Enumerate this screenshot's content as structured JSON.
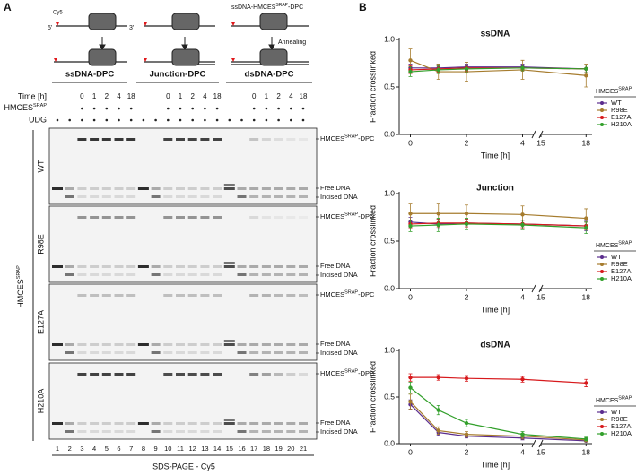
{
  "panel_a": {
    "label": "A",
    "schematic": {
      "cy5": "Cy5",
      "five_prime": "5'",
      "three_prime": "3'",
      "probe": {
        "main": "ssDNA-HMCES",
        "sup": "SRAP",
        "tail": "-DPC"
      },
      "annealing": "Annealing"
    },
    "groups": [
      "ssDNA-DPC",
      "Junction-DPC",
      "dsDNA-DPC"
    ],
    "row_labels": {
      "time": "Time [h]",
      "hmces": {
        "main": "HMCES",
        "sup": "SRAP"
      },
      "udg": "UDG"
    },
    "times": [
      0,
      1,
      2,
      4,
      18
    ],
    "gels": [
      "WT",
      "R98E",
      "E127A",
      "H210A"
    ],
    "band_labels": {
      "dpc": {
        "main": "HMCES",
        "sup": "SRAP",
        "tail": "-DPC"
      },
      "free": "Free DNA",
      "incised": "Incised DNA"
    },
    "protein_label": {
      "main": "HMCES",
      "sup": "SRAP"
    },
    "lanes": [
      1,
      2,
      3,
      4,
      5,
      6,
      7,
      8,
      9,
      10,
      11,
      12,
      13,
      14,
      15,
      16,
      17,
      18,
      19,
      20,
      21
    ],
    "footer": "SDS-PAGE - Cy5"
  },
  "panel_b": {
    "label": "B"
  },
  "chart_data": [
    {
      "type": "line",
      "title": "ssDNA",
      "xlabel": "Time [h]",
      "ylabel": "Fraction crosslinked",
      "x": [
        0,
        1,
        2,
        4,
        18
      ],
      "xlim": [
        -0.4,
        18.4
      ],
      "x_break": [
        4.4,
        15
      ],
      "xticks": [
        0,
        2,
        4,
        15,
        18
      ],
      "ylim": [
        0,
        1
      ],
      "yticks": [
        {
          "value": 0,
          "label": "0.0"
        },
        {
          "value": 0.5,
          "label": "0.5"
        },
        {
          "value": 1,
          "label": "1.0"
        }
      ],
      "legend": "lower right",
      "legend_title": {
        "main": "HMCES",
        "sup": "SRAP"
      },
      "series": [
        {
          "name": "WT",
          "color": "#5b2d8e",
          "values": [
            0.7,
            0.7,
            0.71,
            0.71,
            0.69
          ],
          "errors": [
            0.04,
            0.04,
            0.03,
            0.03,
            0.04
          ]
        },
        {
          "name": "R98E",
          "color": "#a67c2e",
          "values": [
            0.78,
            0.66,
            0.66,
            0.68,
            0.62
          ],
          "errors": [
            0.12,
            0.08,
            0.1,
            0.1,
            0.12
          ]
        },
        {
          "name": "E127A",
          "color": "#d7191c",
          "values": [
            0.68,
            0.69,
            0.7,
            0.7,
            0.69
          ],
          "errors": [
            0.04,
            0.03,
            0.03,
            0.03,
            0.04
          ]
        },
        {
          "name": "H210A",
          "color": "#33a02c",
          "values": [
            0.66,
            0.68,
            0.69,
            0.7,
            0.69
          ],
          "errors": [
            0.05,
            0.04,
            0.04,
            0.03,
            0.04
          ]
        }
      ]
    },
    {
      "type": "line",
      "title": "Junction",
      "xlabel": "Time [h]",
      "ylabel": "Fraction crosslinked",
      "x": [
        0,
        1,
        2,
        4,
        18
      ],
      "xlim": [
        -0.4,
        18.4
      ],
      "x_break": [
        4.4,
        15
      ],
      "xticks": [
        0,
        2,
        4,
        15,
        18
      ],
      "ylim": [
        0,
        1
      ],
      "yticks": [
        {
          "value": 0,
          "label": "0.0"
        },
        {
          "value": 0.5,
          "label": "0.5"
        },
        {
          "value": 1,
          "label": "1.0"
        }
      ],
      "legend": "lower right",
      "legend_title": {
        "main": "HMCES",
        "sup": "SRAP"
      },
      "series": [
        {
          "name": "WT",
          "color": "#5b2d8e",
          "values": [
            0.7,
            0.68,
            0.69,
            0.68,
            0.66
          ],
          "errors": [
            0.05,
            0.05,
            0.04,
            0.04,
            0.05
          ]
        },
        {
          "name": "R98E",
          "color": "#a67c2e",
          "values": [
            0.79,
            0.79,
            0.79,
            0.78,
            0.74
          ],
          "errors": [
            0.1,
            0.1,
            0.09,
            0.09,
            0.1
          ]
        },
        {
          "name": "E127A",
          "color": "#d7191c",
          "values": [
            0.68,
            0.69,
            0.69,
            0.68,
            0.66
          ],
          "errors": [
            0.04,
            0.04,
            0.04,
            0.04,
            0.04
          ]
        },
        {
          "name": "H210A",
          "color": "#33a02c",
          "values": [
            0.66,
            0.67,
            0.68,
            0.67,
            0.64
          ],
          "errors": [
            0.06,
            0.07,
            0.06,
            0.05,
            0.06
          ]
        }
      ]
    },
    {
      "type": "line",
      "title": "dsDNA",
      "xlabel": "Time [h]",
      "ylabel": "Fraction crosslinked",
      "x": [
        0,
        1,
        2,
        4,
        18
      ],
      "xlim": [
        -0.4,
        18.4
      ],
      "x_break": [
        4.4,
        15
      ],
      "xticks": [
        0,
        2,
        4,
        15,
        18
      ],
      "ylim": [
        0,
        1
      ],
      "yticks": [
        {
          "value": 0,
          "label": "0.0"
        },
        {
          "value": 0.5,
          "label": "0.5"
        },
        {
          "value": 1,
          "label": "1.0"
        }
      ],
      "legend": "lower right",
      "legend_title": {
        "main": "HMCES",
        "sup": "SRAP"
      },
      "series": [
        {
          "name": "WT",
          "color": "#5b2d8e",
          "values": [
            0.42,
            0.12,
            0.08,
            0.06,
            0.03
          ],
          "errors": [
            0.05,
            0.03,
            0.02,
            0.02,
            0.01
          ]
        },
        {
          "name": "R98E",
          "color": "#a67c2e",
          "values": [
            0.45,
            0.14,
            0.1,
            0.08,
            0.04
          ],
          "errors": [
            0.08,
            0.04,
            0.03,
            0.03,
            0.02
          ]
        },
        {
          "name": "E127A",
          "color": "#d7191c",
          "values": [
            0.71,
            0.71,
            0.7,
            0.69,
            0.65
          ],
          "errors": [
            0.04,
            0.03,
            0.03,
            0.03,
            0.04
          ]
        },
        {
          "name": "H210A",
          "color": "#33a02c",
          "values": [
            0.6,
            0.36,
            0.22,
            0.1,
            0.05
          ],
          "errors": [
            0.06,
            0.05,
            0.04,
            0.03,
            0.02
          ]
        }
      ]
    }
  ]
}
